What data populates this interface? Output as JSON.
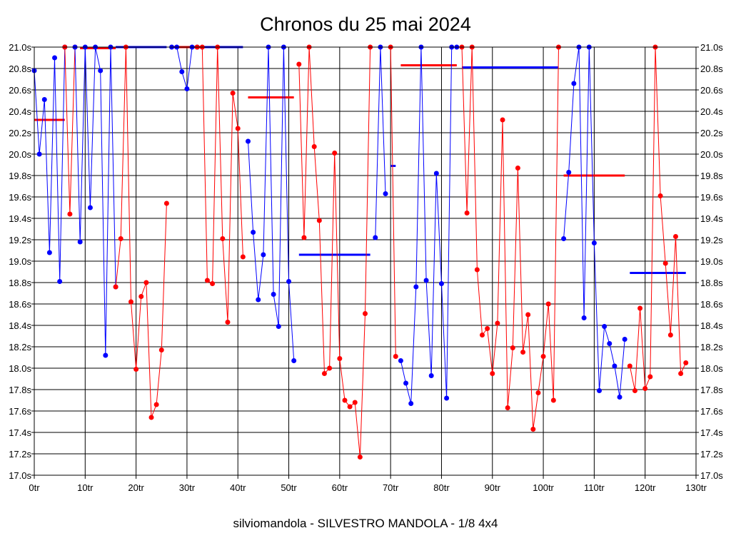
{
  "chart_data": {
    "type": "line",
    "title": "Chronos du 25 mai 2024",
    "footer": "silviomandola - SILVESTRO MANDOLA - 1/8 4x4",
    "x_ticks": [
      "0tr",
      "10tr",
      "20tr",
      "30tr",
      "40tr",
      "50tr",
      "60tr",
      "70tr",
      "80tr",
      "90tr",
      "100tr",
      "110tr",
      "120tr",
      "130tr"
    ],
    "y_ticks": [
      "17.0s",
      "17.2s",
      "17.4s",
      "17.6s",
      "17.8s",
      "18.0s",
      "18.2s",
      "18.4s",
      "18.6s",
      "18.8s",
      "19.0s",
      "19.2s",
      "19.4s",
      "19.6s",
      "19.8s",
      "20.0s",
      "20.2s",
      "20.4s",
      "20.6s",
      "20.8s",
      "21.0s"
    ],
    "xlim": [
      0,
      130
    ],
    "ylim": [
      17.0,
      21.0
    ],
    "grid": true,
    "colors": {
      "blue": "#0000ff",
      "red": "#ff0000",
      "grid": "#000000"
    },
    "series": [
      {
        "color": "#0000ff",
        "points": [
          [
            0,
            20.78
          ],
          [
            1,
            20.0
          ],
          [
            2,
            20.51
          ],
          [
            3,
            19.08
          ],
          [
            4,
            20.9
          ],
          [
            5,
            18.81
          ],
          [
            6,
            21.0
          ]
        ]
      },
      {
        "color": "#ff0000",
        "points": [
          [
            6,
            21.0
          ],
          [
            7,
            19.44
          ],
          [
            8,
            21.0
          ]
        ]
      },
      {
        "color": "#0000ff",
        "points": [
          [
            8,
            21.0
          ],
          [
            9,
            19.18
          ],
          [
            10,
            21.0
          ],
          [
            11,
            19.5
          ],
          [
            12,
            21.0
          ],
          [
            13,
            20.78
          ],
          [
            14,
            18.12
          ],
          [
            15,
            21.0
          ],
          [
            16,
            18.76
          ]
        ]
      },
      {
        "color": "#ff0000",
        "points": [
          [
            16,
            18.76
          ],
          [
            17,
            19.21
          ],
          [
            18,
            21.0
          ],
          [
            19,
            18.62
          ],
          [
            20,
            17.99
          ],
          [
            21,
            18.67
          ],
          [
            22,
            18.8
          ],
          [
            23,
            17.54
          ],
          [
            24,
            17.66
          ],
          [
            25,
            18.17
          ],
          [
            26,
            19.54
          ]
        ]
      },
      {
        "color": "#0000ff",
        "points": [
          [
            27,
            21.0
          ],
          [
            28,
            21.0
          ],
          [
            29,
            20.77
          ],
          [
            30,
            20.61
          ],
          [
            31,
            21.0
          ],
          [
            32,
            21.0
          ]
        ]
      },
      {
        "color": "#ff0000",
        "points": [
          [
            32,
            21.0
          ],
          [
            33,
            21.0
          ],
          [
            34,
            18.82
          ],
          [
            35,
            18.79
          ],
          [
            36,
            21.0
          ],
          [
            37,
            19.21
          ],
          [
            38,
            18.43
          ],
          [
            39,
            20.57
          ],
          [
            40,
            20.24
          ],
          [
            41,
            19.04
          ]
        ]
      },
      {
        "color": "#0000ff",
        "points": [
          [
            42,
            20.12
          ],
          [
            43,
            19.27
          ],
          [
            44,
            18.64
          ],
          [
            45,
            19.06
          ],
          [
            46,
            21.0
          ],
          [
            47,
            18.69
          ],
          [
            48,
            18.39
          ],
          [
            49,
            21.0
          ],
          [
            50,
            18.81
          ],
          [
            51,
            18.07
          ]
        ]
      },
      {
        "color": "#ff0000",
        "points": [
          [
            52,
            20.84
          ],
          [
            53,
            19.22
          ],
          [
            54,
            21.0
          ],
          [
            55,
            20.07
          ],
          [
            56,
            19.38
          ],
          [
            57,
            17.95
          ],
          [
            58,
            18.0
          ],
          [
            59,
            20.01
          ],
          [
            60,
            18.09
          ],
          [
            61,
            17.7
          ],
          [
            62,
            17.64
          ],
          [
            63,
            17.68
          ],
          [
            64,
            17.17
          ],
          [
            65,
            18.51
          ],
          [
            66,
            21.0
          ]
        ]
      },
      {
        "color": "#0000ff",
        "points": [
          [
            67,
            19.22
          ],
          [
            68,
            21.0
          ],
          [
            69,
            19.63
          ]
        ]
      },
      {
        "color": "#ff0000",
        "points": [
          [
            70,
            21.0
          ],
          [
            71,
            18.11
          ]
        ]
      },
      {
        "color": "#0000ff",
        "points": [
          [
            72,
            18.07
          ],
          [
            73,
            17.86
          ],
          [
            74,
            17.67
          ],
          [
            75,
            18.76
          ],
          [
            76,
            21.0
          ],
          [
            77,
            18.82
          ],
          [
            78,
            17.93
          ],
          [
            79,
            19.82
          ],
          [
            80,
            18.79
          ],
          [
            81,
            17.72
          ],
          [
            82,
            21.0
          ],
          [
            83,
            21.0
          ]
        ]
      },
      {
        "color": "#ff0000",
        "points": [
          [
            84,
            21.0
          ],
          [
            85,
            19.45
          ],
          [
            86,
            21.0
          ],
          [
            87,
            18.92
          ],
          [
            88,
            18.31
          ],
          [
            89,
            18.37
          ],
          [
            90,
            17.95
          ],
          [
            91,
            18.42
          ],
          [
            92,
            20.32
          ],
          [
            93,
            17.63
          ],
          [
            94,
            18.19
          ],
          [
            95,
            19.87
          ],
          [
            96,
            18.15
          ],
          [
            97,
            18.5
          ],
          [
            98,
            17.43
          ],
          [
            99,
            17.77
          ],
          [
            100,
            18.11
          ],
          [
            101,
            18.6
          ],
          [
            102,
            17.7
          ],
          [
            103,
            21.0
          ]
        ]
      },
      {
        "color": "#0000ff",
        "points": [
          [
            104,
            19.21
          ],
          [
            105,
            19.83
          ],
          [
            106,
            20.66
          ],
          [
            107,
            21.0
          ],
          [
            108,
            18.47
          ],
          [
            109,
            21.0
          ],
          [
            110,
            19.17
          ],
          [
            111,
            17.79
          ],
          [
            112,
            18.39
          ],
          [
            113,
            18.23
          ],
          [
            114,
            18.02
          ],
          [
            115,
            17.73
          ],
          [
            116,
            18.27
          ]
        ]
      },
      {
        "color": "#ff0000",
        "points": [
          [
            117,
            18.02
          ],
          [
            118,
            17.79
          ],
          [
            119,
            18.56
          ],
          [
            120,
            17.81
          ],
          [
            121,
            17.92
          ],
          [
            122,
            21.0
          ],
          [
            123,
            19.61
          ],
          [
            124,
            18.98
          ],
          [
            125,
            18.31
          ],
          [
            126,
            19.23
          ],
          [
            127,
            17.95
          ],
          [
            128,
            18.05
          ]
        ]
      }
    ],
    "averages": [
      {
        "color": "#ff0000",
        "x": [
          0,
          6
        ],
        "y": 20.32
      },
      {
        "color": "#ff0000",
        "x": [
          9,
          16
        ],
        "y": 20.99
      },
      {
        "color": "#0000ff",
        "x": [
          16,
          26
        ],
        "y": 21.0
      },
      {
        "color": "#ff0000",
        "x": [
          27,
          33
        ],
        "y": 21.0
      },
      {
        "color": "#0000ff",
        "x": [
          33,
          41
        ],
        "y": 21.0
      },
      {
        "color": "#ff0000",
        "x": [
          42,
          51
        ],
        "y": 20.53
      },
      {
        "color": "#0000ff",
        "x": [
          52,
          66
        ],
        "y": 19.06
      },
      {
        "color": "#0000ff",
        "x": [
          70,
          71
        ],
        "y": 19.89
      },
      {
        "color": "#ff0000",
        "x": [
          72,
          83
        ],
        "y": 20.83
      },
      {
        "color": "#0000ff",
        "x": [
          84,
          103
        ],
        "y": 20.81
      },
      {
        "color": "#ff0000",
        "x": [
          104,
          116
        ],
        "y": 19.8
      },
      {
        "color": "#0000ff",
        "x": [
          117,
          128
        ],
        "y": 18.89
      }
    ]
  }
}
